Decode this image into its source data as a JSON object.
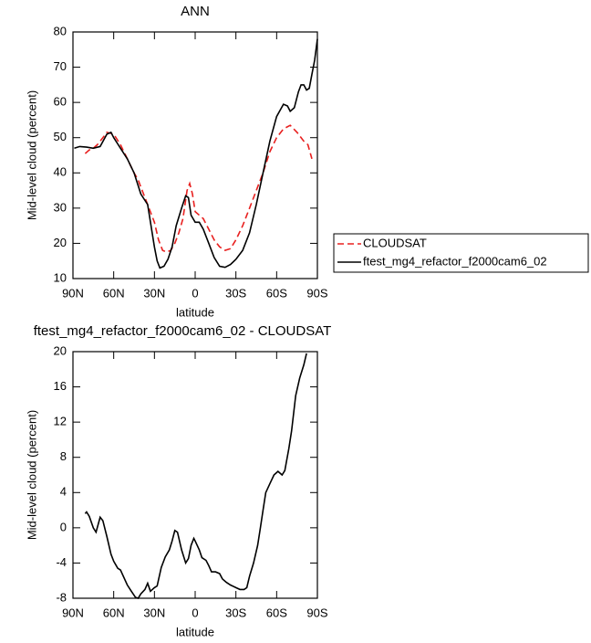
{
  "chart_data": [
    {
      "type": "line",
      "title": "ANN",
      "xlabel": "latitude",
      "ylabel": "Mid-level cloud (percent)",
      "xlim": [
        90,
        -90
      ],
      "xticks": [
        {
          "value": 90,
          "label": "90N"
        },
        {
          "value": 60,
          "label": "60N"
        },
        {
          "value": 30,
          "label": "30N"
        },
        0,
        {
          "value": -30,
          "label": "30S"
        },
        {
          "value": -60,
          "label": "60S"
        },
        {
          "value": -90,
          "label": "90S"
        }
      ],
      "ylim": [
        10,
        80
      ],
      "yticks": [
        10,
        20,
        30,
        40,
        50,
        60,
        70,
        80
      ],
      "legend": "right",
      "series": [
        {
          "name": "CLOUDSAT",
          "color": "#e8201f",
          "linestyle": "dashed",
          "x": [
            81,
            78,
            75,
            72,
            68,
            65,
            60,
            55,
            50,
            45,
            42,
            40,
            35,
            30,
            27,
            24,
            21,
            18,
            15,
            12,
            9,
            6,
            4,
            2,
            0,
            -3,
            -6,
            -10,
            -14,
            -18,
            -22,
            -26,
            -30,
            -35,
            -40,
            -45,
            -50,
            -55,
            -60,
            -65,
            -70,
            -75,
            -80,
            -83,
            -86
          ],
          "values": [
            45.5,
            46.5,
            47,
            48,
            50,
            51.5,
            51,
            48,
            44,
            40,
            38,
            36,
            31,
            26,
            21,
            18,
            17.5,
            18,
            20,
            23,
            27,
            35,
            37,
            34,
            29,
            28,
            27,
            24,
            21,
            19,
            18,
            18.5,
            21,
            25,
            30,
            35,
            40,
            46,
            50,
            52.5,
            53.5,
            51.5,
            49,
            48,
            44
          ]
        },
        {
          "name": "ftest_mg4_refactor_f2000cam6_02",
          "color": "#000000",
          "linestyle": "solid",
          "x": [
            89,
            85,
            80,
            75,
            70,
            65,
            62,
            60,
            55,
            50,
            45,
            40,
            35,
            30,
            28,
            26,
            23,
            20,
            17,
            14,
            10,
            7,
            5,
            3,
            0,
            -3,
            -6,
            -10,
            -14,
            -18,
            -22,
            -26,
            -30,
            -35,
            -40,
            -45,
            -50,
            -55,
            -60,
            -65,
            -68,
            -70,
            -73,
            -76,
            -78,
            -80,
            -82,
            -84,
            -86,
            -88,
            -90
          ],
          "values": [
            47,
            47.5,
            47.3,
            47,
            47.5,
            51,
            51.5,
            50,
            47,
            44,
            40,
            34,
            31,
            19,
            15,
            13,
            13.5,
            15.5,
            19,
            25,
            30,
            33.5,
            33,
            28,
            26,
            26,
            24,
            20,
            16,
            13.5,
            13.2,
            14,
            15.5,
            18,
            23,
            31,
            40,
            49,
            56,
            59.5,
            59,
            57.5,
            58.5,
            63,
            65,
            65,
            63.5,
            64,
            68,
            72,
            78
          ]
        }
      ]
    },
    {
      "type": "line",
      "title": "ftest_mg4_refactor_f2000cam6_02 - CLOUDSAT",
      "xlabel": "latitude",
      "ylabel": "Mid-level cloud (percent)",
      "xlim": [
        90,
        -90
      ],
      "xticks": [
        {
          "value": 90,
          "label": "90N"
        },
        {
          "value": 60,
          "label": "60N"
        },
        {
          "value": 30,
          "label": "30N"
        },
        0,
        {
          "value": -30,
          "label": "30S"
        },
        {
          "value": -60,
          "label": "60S"
        },
        {
          "value": -90,
          "label": "90S"
        }
      ],
      "ylim": [
        -8,
        20
      ],
      "yticks": [
        -8,
        -4,
        0,
        4,
        8,
        12,
        16,
        20
      ],
      "color": "#000000",
      "x": [
        81,
        80,
        78,
        75,
        73,
        70,
        68,
        65,
        62,
        60,
        57,
        55,
        50,
        47,
        44,
        42,
        40,
        37,
        35,
        33,
        30,
        28,
        25,
        22,
        19,
        17,
        15,
        13,
        10,
        7,
        5,
        3,
        1,
        0,
        -3,
        -5,
        -8,
        -10,
        -12,
        -15,
        -18,
        -20,
        -23,
        -26,
        -30,
        -33,
        -36,
        -38,
        -40,
        -43,
        -46,
        -48,
        -50,
        -52,
        -55,
        -58,
        -61,
        -64,
        -66,
        -69,
        -71,
        -74,
        -77,
        -80,
        -82
      ],
      "values": [
        1.6,
        1.8,
        1.3,
        0,
        -0.5,
        1.2,
        0.8,
        -1,
        -3,
        -3.8,
        -4.6,
        -4.8,
        -6.5,
        -7.2,
        -7.9,
        -8,
        -7.5,
        -7,
        -6.3,
        -7.2,
        -6.8,
        -6.6,
        -4.5,
        -3.3,
        -2.5,
        -1.5,
        -0.3,
        -0.5,
        -2.5,
        -4,
        -3.5,
        -2,
        -1.2,
        -1.5,
        -2.5,
        -3.4,
        -3.7,
        -4.3,
        -5,
        -5,
        -5.2,
        -5.8,
        -6.2,
        -6.5,
        -6.8,
        -7,
        -7,
        -6.8,
        -5.5,
        -4,
        -2,
        0,
        2,
        4,
        5,
        6,
        6.4,
        6,
        6.5,
        9,
        11,
        15,
        17,
        18.5,
        19.8
      ]
    }
  ]
}
